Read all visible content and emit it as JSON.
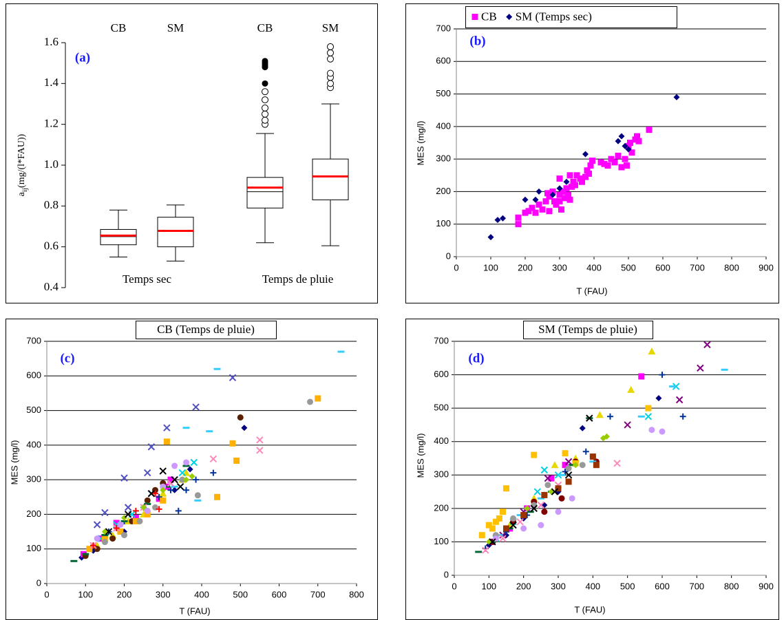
{
  "chart_data": [
    {
      "type": "box",
      "panel_label": "(a)",
      "y_label": "a",
      "y_label_sub": "ij",
      "y_label_unit": "(mg/(l*FAU))",
      "categories": [
        "CB",
        "SM",
        "CB",
        "SM"
      ],
      "groups": [
        "Temps sec",
        "Temps de pluie"
      ],
      "ylim": [
        0.4,
        1.6
      ],
      "yticks": [
        0.4,
        0.6,
        0.8,
        {
          "value": 1,
          "label": "1.0"
        },
        1.2,
        1.4,
        1.6
      ],
      "mean_color": "#ff0000",
      "boxes": [
        {
          "min": 0.55,
          "q1": 0.61,
          "median": 0.65,
          "mean": 0.655,
          "q3": 0.685,
          "max": 0.78,
          "outliers": [],
          "extremes": []
        },
        {
          "min": 0.53,
          "q1": 0.6,
          "median": 0.675,
          "mean": 0.678,
          "q3": 0.745,
          "max": 0.805,
          "outliers": [],
          "extremes": []
        },
        {
          "min": 0.62,
          "q1": 0.79,
          "median": 0.87,
          "mean": 0.89,
          "q3": 0.94,
          "max": 1.155,
          "outliers": [
            1.2,
            1.22,
            1.25,
            1.28,
            1.32,
            1.36
          ],
          "extremes": [
            1.4,
            1.48,
            1.49,
            1.5,
            1.51
          ]
        },
        {
          "min": 0.605,
          "q1": 0.83,
          "median": 0.945,
          "mean": 0.945,
          "q3": 1.03,
          "max": 1.3,
          "outliers": [
            1.38,
            1.4,
            1.43,
            1.45,
            1.52,
            1.55,
            1.58
          ],
          "extremes": []
        }
      ]
    },
    {
      "type": "scatter",
      "panel_label": "(b)",
      "x_label": "T (FAU)",
      "y_label": "MES (mg/l)",
      "legend": "top",
      "grid": true,
      "xlim": [
        0,
        900
      ],
      "xticks": [
        0,
        100,
        200,
        300,
        400,
        500,
        600,
        700,
        800,
        900
      ],
      "ylim": [
        0,
        700
      ],
      "yticks": [
        0,
        100,
        200,
        300,
        400,
        500,
        600,
        700
      ],
      "series": [
        {
          "name": "CB",
          "color": "#ff00ff",
          "marker": "square",
          "x": [
            180,
            180,
            200,
            210,
            220,
            230,
            240,
            250,
            260,
            265,
            270,
            280,
            285,
            290,
            300,
            300,
            305,
            310,
            315,
            320,
            325,
            330,
            335,
            340,
            345,
            350,
            360,
            365,
            375,
            380,
            385,
            390,
            395,
            420,
            430,
            440,
            450,
            460,
            470,
            480,
            490,
            495,
            500,
            505,
            510,
            520,
            525,
            530,
            560,
            300,
            270,
            330
          ],
          "values": [
            100,
            120,
            135,
            140,
            150,
            135,
            160,
            145,
            170,
            195,
            185,
            200,
            170,
            160,
            190,
            170,
            145,
            200,
            180,
            210,
            190,
            175,
            215,
            230,
            220,
            250,
            240,
            230,
            245,
            265,
            255,
            280,
            295,
            290,
            285,
            280,
            300,
            290,
            310,
            275,
            300,
            280,
            340,
            350,
            320,
            360,
            370,
            355,
            390,
            240,
            140,
            250
          ]
        },
        {
          "name": "SM (Temps sec)",
          "color": "#000080",
          "marker": "diamond",
          "x": [
            100,
            120,
            135,
            200,
            230,
            240,
            280,
            300,
            320,
            375,
            470,
            480,
            490,
            500,
            640
          ],
          "values": [
            60,
            113,
            118,
            175,
            175,
            200,
            190,
            210,
            230,
            315,
            355,
            370,
            340,
            330,
            490
          ]
        }
      ]
    },
    {
      "type": "scatter",
      "title": "CB (Temps de pluie)",
      "panel_label": "(c)",
      "x_label": "T (FAU)",
      "y_label": "MES (mg/l)",
      "grid": true,
      "xlim": [
        0,
        800
      ],
      "xticks": [
        0,
        100,
        200,
        300,
        400,
        500,
        600,
        700,
        800
      ],
      "ylim": [
        0,
        700
      ],
      "yticks": [
        0,
        100,
        200,
        300,
        400,
        500,
        600,
        700
      ],
      "series": [
        {
          "color": "#000080",
          "marker": "diamond",
          "x": [
            90,
            120,
            150,
            200,
            260,
            330,
            370,
            510
          ],
          "values": [
            75,
            95,
            120,
            150,
            210,
            270,
            330,
            450
          ]
        },
        {
          "color": "#ff00ff",
          "marker": "square",
          "x": [
            95,
            140,
            180,
            230,
            290,
            310,
            320
          ],
          "values": [
            85,
            130,
            175,
            190,
            245,
            280,
            300
          ]
        },
        {
          "color": "#e6d800",
          "marker": "triangle",
          "x": [
            130,
            170,
            210,
            250,
            300,
            350,
            360
          ],
          "values": [
            110,
            140,
            180,
            200,
            260,
            300,
            320
          ]
        },
        {
          "color": "#00d0e0",
          "marker": "x",
          "x": [
            140,
            180,
            220,
            270,
            320,
            350,
            380
          ],
          "values": [
            130,
            170,
            200,
            260,
            290,
            320,
            350
          ]
        },
        {
          "color": "#5050c0",
          "marker": "x",
          "x": [
            130,
            150,
            200,
            210,
            260,
            270,
            310,
            385,
            480
          ],
          "values": [
            170,
            205,
            305,
            220,
            320,
            395,
            450,
            510,
            595
          ]
        },
        {
          "color": "#5a2000",
          "marker": "circle",
          "x": [
            100,
            130,
            170,
            220,
            260,
            280,
            300,
            500
          ],
          "values": [
            80,
            100,
            130,
            180,
            240,
            270,
            290,
            480
          ]
        },
        {
          "color": "#003399",
          "marker": "plus",
          "x": [
            160,
            200,
            250,
            290,
            320,
            340,
            360,
            385,
            430
          ],
          "values": [
            150,
            180,
            220,
            250,
            270,
            210,
            270,
            300,
            320
          ]
        },
        {
          "color": "#ffb000",
          "marker": "square",
          "x": [
            110,
            150,
            190,
            230,
            260,
            300,
            310,
            480,
            490,
            440,
            700
          ],
          "values": [
            100,
            130,
            150,
            180,
            200,
            240,
            410,
            405,
            355,
            250,
            535
          ]
        },
        {
          "color": "#33ccff",
          "marker": "dash",
          "x": [
            150,
            200,
            260,
            330,
            360,
            420,
            440,
            760,
            390
          ],
          "values": [
            140,
            180,
            230,
            280,
            450,
            440,
            620,
            670,
            240
          ]
        },
        {
          "color": "#006633",
          "marker": "dash",
          "x": [
            70,
            100,
            150,
            200,
            260,
            310,
            360
          ],
          "values": [
            65,
            85,
            140,
            180,
            230,
            280,
            340
          ]
        },
        {
          "color": "#999999",
          "marker": "circle",
          "x": [
            150,
            200,
            240,
            280,
            350,
            390,
            680
          ],
          "values": [
            120,
            140,
            180,
            220,
            300,
            255,
            525
          ]
        },
        {
          "color": "#ff88bb",
          "marker": "x",
          "x": [
            120,
            180,
            250,
            320,
            430,
            550,
            550
          ],
          "values": [
            110,
            160,
            220,
            290,
            360,
            415,
            385
          ]
        },
        {
          "color": "#cc99ff",
          "marker": "circle",
          "x": [
            130,
            190,
            260,
            300,
            330,
            360
          ],
          "values": [
            130,
            170,
            210,
            280,
            340,
            350
          ]
        },
        {
          "color": "#99cc00",
          "marker": "diamond",
          "x": [
            150,
            200,
            250,
            300,
            360,
            375
          ],
          "values": [
            150,
            190,
            220,
            270,
            300,
            310
          ]
        },
        {
          "color": "#ff0000",
          "marker": "plus",
          "x": [
            120,
            180,
            230,
            280,
            290
          ],
          "values": [
            110,
            160,
            210,
            260,
            215
          ]
        },
        {
          "color": "#000000",
          "marker": "x",
          "x": [
            160,
            210,
            270,
            300,
            330,
            345
          ],
          "values": [
            150,
            200,
            260,
            325,
            300,
            280
          ]
        }
      ]
    },
    {
      "type": "scatter",
      "title": "SM (Temps de pluie)",
      "panel_label": "(d)",
      "x_label": "T (FAU)",
      "y_label": "MES (mg/l)",
      "grid": true,
      "xlim": [
        0,
        900
      ],
      "xticks": [
        0,
        100,
        200,
        300,
        400,
        500,
        600,
        700,
        800,
        900
      ],
      "ylim": [
        0,
        700
      ],
      "yticks": [
        0,
        100,
        200,
        300,
        400,
        500,
        600,
        700
      ],
      "series": [
        {
          "color": "#000080",
          "marker": "diamond",
          "x": [
            100,
            150,
            200,
            260,
            300,
            370,
            590
          ],
          "values": [
            90,
            120,
            170,
            210,
            250,
            440,
            530
          ]
        },
        {
          "color": "#ff00ff",
          "marker": "square",
          "x": [
            110,
            160,
            210,
            280,
            320,
            540
          ],
          "values": [
            100,
            140,
            200,
            290,
            330,
            595
          ]
        },
        {
          "color": "#e6d800",
          "marker": "triangle",
          "x": [
            120,
            160,
            230,
            290,
            350,
            420,
            510,
            570
          ],
          "values": [
            110,
            150,
            230,
            330,
            350,
            480,
            555,
            670
          ]
        },
        {
          "color": "#00d0e0",
          "marker": "x",
          "x": [
            120,
            170,
            240,
            260,
            300,
            560,
            640
          ],
          "values": [
            110,
            160,
            250,
            315,
            300,
            475,
            565
          ]
        },
        {
          "color": "#800080",
          "marker": "x",
          "x": [
            140,
            200,
            270,
            330,
            500,
            650,
            710,
            730
          ],
          "values": [
            120,
            190,
            290,
            340,
            450,
            525,
            620,
            690
          ]
        },
        {
          "color": "#800000",
          "marker": "circle",
          "x": [
            110,
            170,
            230,
            260,
            310,
            350,
            400,
            410
          ],
          "values": [
            100,
            160,
            220,
            190,
            230,
            340,
            355,
            340
          ]
        },
        {
          "color": "#003399",
          "marker": "plus",
          "x": [
            90,
            150,
            210,
            260,
            320,
            380,
            450,
            600,
            660
          ],
          "values": [
            80,
            130,
            180,
            240,
            310,
            370,
            475,
            600,
            475
          ]
        },
        {
          "color": "#ffc000",
          "marker": "square",
          "x": [
            80,
            100,
            110,
            120,
            130,
            140,
            150,
            230,
            320,
            560,
            350
          ],
          "values": [
            120,
            150,
            140,
            160,
            170,
            190,
            260,
            360,
            365,
            500,
            335
          ]
        },
        {
          "color": "#33ccff",
          "marker": "dash",
          "x": [
            130,
            190,
            250,
            310,
            400,
            540,
            780,
            630
          ],
          "values": [
            120,
            180,
            230,
            300,
            340,
            475,
            615,
            565
          ]
        },
        {
          "color": "#006633",
          "marker": "dash",
          "x": [
            70,
            110,
            160,
            220,
            280,
            340,
            390
          ],
          "values": [
            70,
            100,
            140,
            190,
            250,
            330,
            470
          ]
        },
        {
          "color": "#999999",
          "marker": "circle",
          "x": [
            120,
            170,
            230,
            270,
            330,
            370
          ],
          "values": [
            120,
            170,
            210,
            270,
            320,
            330
          ]
        },
        {
          "color": "#ff88bb",
          "marker": "x",
          "x": [
            90,
            140,
            190,
            250,
            300,
            470
          ],
          "values": [
            75,
            110,
            160,
            210,
            270,
            335
          ]
        },
        {
          "color": "#cc99ff",
          "marker": "circle",
          "x": [
            120,
            200,
            250,
            300,
            340,
            570,
            600
          ],
          "values": [
            110,
            140,
            150,
            190,
            230,
            435,
            430
          ]
        },
        {
          "color": "#99cc00",
          "marker": "diamond",
          "x": [
            100,
            150,
            210,
            280,
            350,
            430,
            440
          ],
          "values": [
            100,
            140,
            200,
            250,
            330,
            410,
            415
          ]
        },
        {
          "color": "#993300",
          "marker": "square",
          "x": [
            150,
            200,
            260,
            300,
            330,
            400,
            410
          ],
          "values": [
            140,
            180,
            240,
            260,
            280,
            355,
            330
          ]
        },
        {
          "color": "#000000",
          "marker": "x",
          "x": [
            110,
            170,
            230,
            290,
            330,
            390
          ],
          "values": [
            100,
            150,
            200,
            250,
            300,
            470
          ]
        }
      ]
    }
  ]
}
